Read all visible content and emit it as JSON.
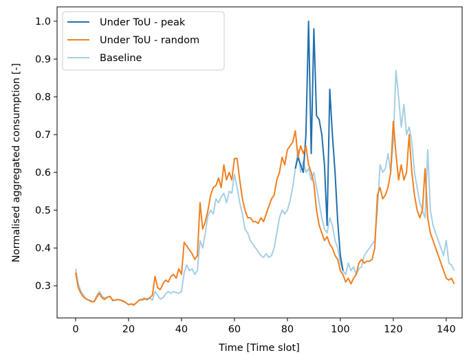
{
  "chart_data": {
    "type": "line",
    "title": "",
    "xlabel": "Time [Time slot]",
    "ylabel": "Normalised aggregated consumption [-]",
    "xlim": [
      -7,
      146
    ],
    "ylim": [
      0.215,
      1.038
    ],
    "xticks": [
      0,
      20,
      40,
      60,
      80,
      100,
      120,
      140
    ],
    "yticks": [
      0.3,
      0.4,
      0.5,
      0.6,
      0.7,
      0.8,
      0.9,
      1.0
    ],
    "xtick_labels": [
      "0",
      "20",
      "40",
      "60",
      "80",
      "100",
      "120",
      "140"
    ],
    "ytick_labels": [
      "0.3",
      "0.4",
      "0.5",
      "0.6",
      "0.7",
      "0.8",
      "0.9",
      "1.0"
    ],
    "grid": false,
    "legend_position": "top-left",
    "series": [
      {
        "name": "Baseline",
        "color": "#a6cee3",
        "points": [
          [
            0,
            0.345
          ],
          [
            1,
            0.305
          ],
          [
            2,
            0.285
          ],
          [
            3,
            0.275
          ],
          [
            4,
            0.265
          ],
          [
            5,
            0.262
          ],
          [
            6,
            0.26
          ],
          [
            7,
            0.258
          ],
          [
            8,
            0.275
          ],
          [
            9,
            0.285
          ],
          [
            10,
            0.272
          ],
          [
            11,
            0.268
          ],
          [
            12,
            0.27
          ],
          [
            13,
            0.272
          ],
          [
            14,
            0.26
          ],
          [
            15,
            0.262
          ],
          [
            16,
            0.264
          ],
          [
            17,
            0.262
          ],
          [
            18,
            0.258
          ],
          [
            19,
            0.255
          ],
          [
            20,
            0.25
          ],
          [
            21,
            0.252
          ],
          [
            22,
            0.248
          ],
          [
            23,
            0.255
          ],
          [
            24,
            0.262
          ],
          [
            25,
            0.265
          ],
          [
            26,
            0.268
          ],
          [
            27,
            0.262
          ],
          [
            28,
            0.268
          ],
          [
            29,
            0.262
          ],
          [
            30,
            0.285
          ],
          [
            31,
            0.275
          ],
          [
            32,
            0.265
          ],
          [
            33,
            0.268
          ],
          [
            34,
            0.278
          ],
          [
            35,
            0.285
          ],
          [
            36,
            0.28
          ],
          [
            37,
            0.285
          ],
          [
            38,
            0.282
          ],
          [
            39,
            0.28
          ],
          [
            40,
            0.285
          ],
          [
            41,
            0.335
          ],
          [
            42,
            0.355
          ],
          [
            43,
            0.34
          ],
          [
            44,
            0.345
          ],
          [
            45,
            0.33
          ],
          [
            46,
            0.34
          ],
          [
            47,
            0.42
          ],
          [
            48,
            0.4
          ],
          [
            49,
            0.44
          ],
          [
            50,
            0.485
          ],
          [
            51,
            0.5
          ],
          [
            52,
            0.49
          ],
          [
            53,
            0.53
          ],
          [
            54,
            0.52
          ],
          [
            55,
            0.535
          ],
          [
            56,
            0.545
          ],
          [
            57,
            0.52
          ],
          [
            58,
            0.55
          ],
          [
            59,
            0.545
          ],
          [
            60,
            0.595
          ],
          [
            61,
            0.56
          ],
          [
            62,
            0.52
          ],
          [
            63,
            0.49
          ],
          [
            64,
            0.45
          ],
          [
            65,
            0.44
          ],
          [
            66,
            0.42
          ],
          [
            67,
            0.41
          ],
          [
            68,
            0.4
          ],
          [
            69,
            0.39
          ],
          [
            70,
            0.38
          ],
          [
            71,
            0.375
          ],
          [
            72,
            0.385
          ],
          [
            73,
            0.375
          ],
          [
            74,
            0.38
          ],
          [
            75,
            0.4
          ],
          [
            76,
            0.44
          ],
          [
            77,
            0.48
          ],
          [
            78,
            0.5
          ],
          [
            79,
            0.49
          ],
          [
            80,
            0.5
          ],
          [
            81,
            0.525
          ],
          [
            82,
            0.56
          ],
          [
            83,
            0.61
          ],
          [
            84,
            0.66
          ],
          [
            85,
            0.6
          ],
          [
            86,
            0.63
          ],
          [
            87,
            0.6
          ],
          [
            88,
            0.61
          ],
          [
            89,
            0.58
          ],
          [
            90,
            0.6
          ],
          [
            91,
            0.56
          ],
          [
            92,
            0.52
          ],
          [
            93,
            0.48
          ],
          [
            94,
            0.45
          ],
          [
            95,
            0.44
          ],
          [
            96,
            0.48
          ],
          [
            97,
            0.46
          ],
          [
            98,
            0.42
          ],
          [
            99,
            0.4
          ],
          [
            100,
            0.36
          ],
          [
            101,
            0.34
          ],
          [
            102,
            0.33
          ],
          [
            103,
            0.36
          ],
          [
            104,
            0.34
          ],
          [
            105,
            0.35
          ],
          [
            106,
            0.33
          ],
          [
            107,
            0.345
          ],
          [
            108,
            0.35
          ],
          [
            109,
            0.38
          ],
          [
            110,
            0.39
          ],
          [
            111,
            0.4
          ],
          [
            112,
            0.41
          ],
          [
            113,
            0.42
          ],
          [
            114,
            0.5
          ],
          [
            115,
            0.62
          ],
          [
            116,
            0.6
          ],
          [
            117,
            0.61
          ],
          [
            118,
            0.65
          ],
          [
            119,
            0.6
          ],
          [
            120,
            0.68
          ],
          [
            121,
            0.87
          ],
          [
            122,
            0.8
          ],
          [
            123,
            0.72
          ],
          [
            124,
            0.78
          ],
          [
            125,
            0.7
          ],
          [
            126,
            0.72
          ],
          [
            127,
            0.68
          ],
          [
            128,
            0.6
          ],
          [
            129,
            0.56
          ],
          [
            130,
            0.52
          ],
          [
            131,
            0.5
          ],
          [
            132,
            0.48
          ],
          [
            133,
            0.66
          ],
          [
            134,
            0.5
          ],
          [
            135,
            0.46
          ],
          [
            136,
            0.44
          ],
          [
            137,
            0.42
          ],
          [
            138,
            0.4
          ],
          [
            139,
            0.38
          ],
          [
            140,
            0.42
          ],
          [
            141,
            0.36
          ],
          [
            142,
            0.355
          ],
          [
            143,
            0.34
          ]
        ]
      },
      {
        "name": "Under ToU - peak",
        "color": "#1f6fad",
        "points": [
          [
            83,
            0.61
          ],
          [
            84,
            0.64
          ],
          [
            85,
            0.62
          ],
          [
            86,
            0.6
          ],
          [
            87,
            0.7
          ],
          [
            88,
            1.0
          ],
          [
            89,
            0.65
          ],
          [
            90,
            0.98
          ],
          [
            91,
            0.75
          ],
          [
            92,
            0.74
          ],
          [
            93,
            0.7
          ],
          [
            94,
            0.62
          ],
          [
            95,
            0.46
          ],
          [
            96,
            0.82
          ],
          [
            97,
            0.7
          ],
          [
            98,
            0.6
          ],
          [
            99,
            0.47
          ],
          [
            100,
            0.38
          ],
          [
            101,
            0.34
          ]
        ]
      },
      {
        "name": "Under ToU - random",
        "color": "#f07f1e",
        "points": [
          [
            0,
            0.335
          ],
          [
            1,
            0.295
          ],
          [
            2,
            0.28
          ],
          [
            3,
            0.27
          ],
          [
            4,
            0.265
          ],
          [
            5,
            0.262
          ],
          [
            6,
            0.258
          ],
          [
            7,
            0.258
          ],
          [
            8,
            0.27
          ],
          [
            9,
            0.28
          ],
          [
            10,
            0.268
          ],
          [
            11,
            0.264
          ],
          [
            12,
            0.27
          ],
          [
            13,
            0.272
          ],
          [
            14,
            0.262
          ],
          [
            15,
            0.262
          ],
          [
            16,
            0.264
          ],
          [
            17,
            0.262
          ],
          [
            18,
            0.26
          ],
          [
            19,
            0.255
          ],
          [
            20,
            0.25
          ],
          [
            21,
            0.252
          ],
          [
            22,
            0.25
          ],
          [
            23,
            0.255
          ],
          [
            24,
            0.262
          ],
          [
            25,
            0.262
          ],
          [
            26,
            0.265
          ],
          [
            27,
            0.265
          ],
          [
            28,
            0.268
          ],
          [
            29,
            0.275
          ],
          [
            30,
            0.325
          ],
          [
            31,
            0.295
          ],
          [
            32,
            0.29
          ],
          [
            33,
            0.305
          ],
          [
            34,
            0.315
          ],
          [
            35,
            0.31
          ],
          [
            36,
            0.325
          ],
          [
            37,
            0.33
          ],
          [
            38,
            0.32
          ],
          [
            39,
            0.345
          ],
          [
            40,
            0.33
          ],
          [
            41,
            0.415
          ],
          [
            42,
            0.405
          ],
          [
            43,
            0.395
          ],
          [
            44,
            0.385
          ],
          [
            45,
            0.37
          ],
          [
            46,
            0.38
          ],
          [
            47,
            0.52
          ],
          [
            48,
            0.45
          ],
          [
            49,
            0.47
          ],
          [
            50,
            0.5
          ],
          [
            51,
            0.54
          ],
          [
            52,
            0.56
          ],
          [
            53,
            0.565
          ],
          [
            54,
            0.585
          ],
          [
            55,
            0.56
          ],
          [
            56,
            0.62
          ],
          [
            57,
            0.58
          ],
          [
            58,
            0.6
          ],
          [
            59,
            0.58
          ],
          [
            60,
            0.637
          ],
          [
            61,
            0.637
          ],
          [
            62,
            0.58
          ],
          [
            63,
            0.53
          ],
          [
            64,
            0.5
          ],
          [
            65,
            0.48
          ],
          [
            66,
            0.48
          ],
          [
            67,
            0.47
          ],
          [
            68,
            0.47
          ],
          [
            69,
            0.465
          ],
          [
            70,
            0.48
          ],
          [
            71,
            0.47
          ],
          [
            72,
            0.49
          ],
          [
            73,
            0.51
          ],
          [
            74,
            0.53
          ],
          [
            75,
            0.54
          ],
          [
            76,
            0.58
          ],
          [
            77,
            0.6
          ],
          [
            78,
            0.64
          ],
          [
            79,
            0.62
          ],
          [
            80,
            0.66
          ],
          [
            81,
            0.67
          ],
          [
            82,
            0.68
          ],
          [
            83,
            0.71
          ],
          [
            84,
            0.64
          ],
          [
            85,
            0.67
          ],
          [
            86,
            0.65
          ],
          [
            87,
            0.67
          ],
          [
            88,
            0.62
          ],
          [
            89,
            0.6
          ],
          [
            90,
            0.57
          ],
          [
            91,
            0.5
          ],
          [
            92,
            0.46
          ],
          [
            93,
            0.44
          ],
          [
            94,
            0.42
          ],
          [
            95,
            0.43
          ],
          [
            96,
            0.41
          ],
          [
            97,
            0.4
          ],
          [
            98,
            0.38
          ],
          [
            99,
            0.37
          ],
          [
            100,
            0.34
          ],
          [
            101,
            0.33
          ],
          [
            102,
            0.31
          ],
          [
            103,
            0.32
          ],
          [
            104,
            0.305
          ],
          [
            105,
            0.32
          ],
          [
            106,
            0.33
          ],
          [
            107,
            0.36
          ],
          [
            108,
            0.37
          ],
          [
            109,
            0.36
          ],
          [
            110,
            0.365
          ],
          [
            111,
            0.365
          ],
          [
            112,
            0.37
          ],
          [
            113,
            0.4
          ],
          [
            114,
            0.54
          ],
          [
            115,
            0.56
          ],
          [
            116,
            0.53
          ],
          [
            117,
            0.54
          ],
          [
            118,
            0.56
          ],
          [
            119,
            0.6
          ],
          [
            120,
            0.735
          ],
          [
            121,
            0.65
          ],
          [
            122,
            0.58
          ],
          [
            123,
            0.62
          ],
          [
            124,
            0.58
          ],
          [
            125,
            0.6
          ],
          [
            126,
            0.7
          ],
          [
            127,
            0.6
          ],
          [
            128,
            0.54
          ],
          [
            129,
            0.5
          ],
          [
            130,
            0.48
          ],
          [
            131,
            0.5
          ],
          [
            132,
            0.61
          ],
          [
            133,
            0.48
          ],
          [
            134,
            0.44
          ],
          [
            135,
            0.42
          ],
          [
            136,
            0.4
          ],
          [
            137,
            0.38
          ],
          [
            138,
            0.36
          ],
          [
            139,
            0.34
          ],
          [
            140,
            0.32
          ],
          [
            141,
            0.315
          ],
          [
            142,
            0.32
          ],
          [
            143,
            0.305
          ]
        ]
      }
    ],
    "legend": [
      {
        "label": "Under ToU - peak",
        "color": "#1f6fad"
      },
      {
        "label": "Under ToU - random",
        "color": "#f07f1e"
      },
      {
        "label": "Baseline",
        "color": "#a6cee3"
      }
    ]
  }
}
